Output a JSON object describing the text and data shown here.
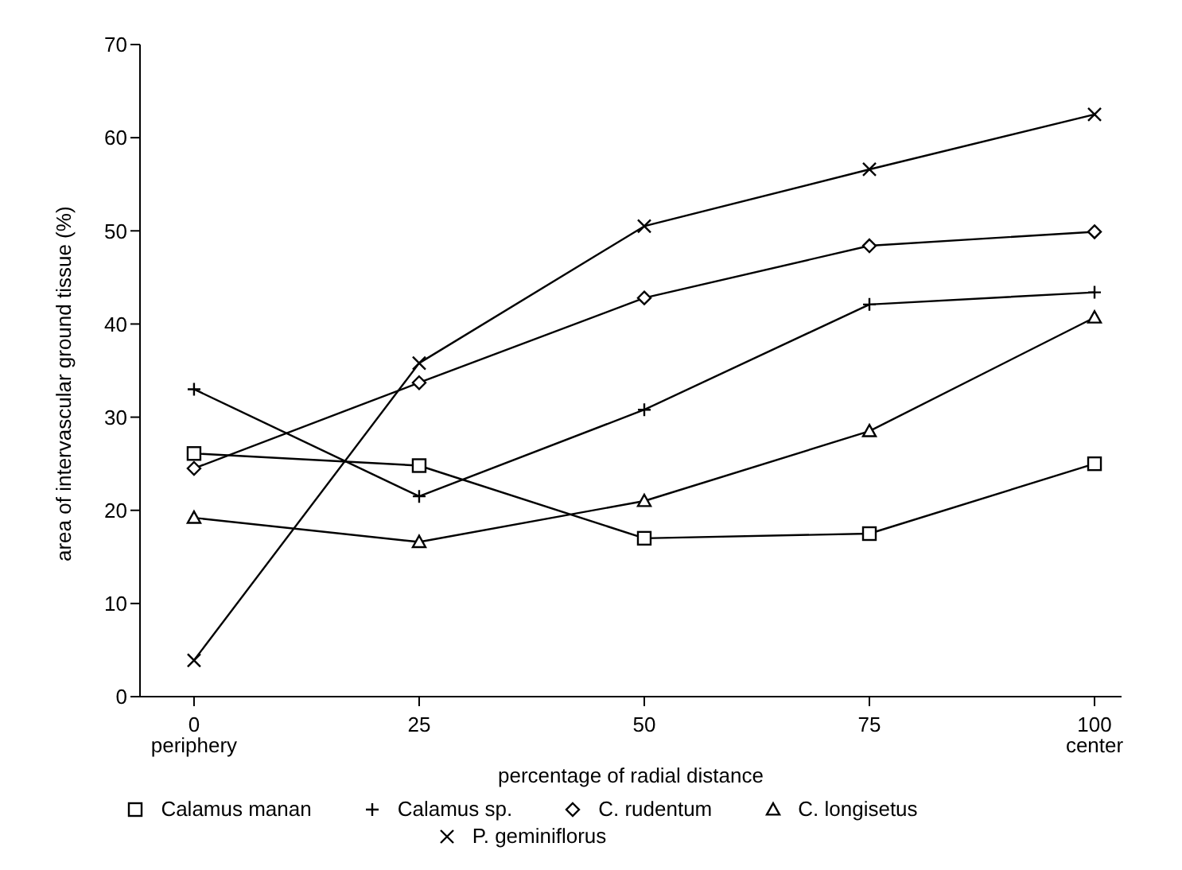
{
  "chart_data": {
    "type": "line",
    "xlabel": "percentage of radial distance",
    "ylabel": "area of intervascular ground tissue (%)",
    "x": [
      0,
      25,
      50,
      75,
      100
    ],
    "xlim": [
      -6,
      103
    ],
    "xticks": [
      {
        "value": 0,
        "label": "0\nperiphery"
      },
      25,
      50,
      75,
      {
        "value": 100,
        "label": "100\ncenter"
      }
    ],
    "ylim": [
      0,
      70
    ],
    "yticks": [
      0,
      10,
      20,
      30,
      40,
      50,
      60,
      70
    ],
    "grid": false,
    "legend": "bottom",
    "line_style": "solid",
    "series": [
      {
        "name": "Calamus manan",
        "color": "#000000",
        "marker": "square",
        "values": [
          26.1,
          24.8,
          17.0,
          17.5,
          25.0
        ]
      },
      {
        "name": "Calamus sp.",
        "color": "#000000",
        "marker": "plus",
        "values": [
          33.0,
          21.5,
          30.8,
          42.1,
          43.4
        ]
      },
      {
        "name": "C. rudentum",
        "color": "#000000",
        "marker": "diamond",
        "values": [
          24.5,
          33.7,
          42.8,
          48.4,
          49.9
        ]
      },
      {
        "name": "C. longisetus",
        "color": "#000000",
        "marker": "triangle",
        "values": [
          19.2,
          16.6,
          21.0,
          28.5,
          40.7
        ]
      },
      {
        "name": "P. geminiflorus",
        "color": "#000000",
        "marker": "cross",
        "values": [
          3.9,
          35.8,
          50.5,
          56.6,
          62.5
        ]
      }
    ]
  }
}
